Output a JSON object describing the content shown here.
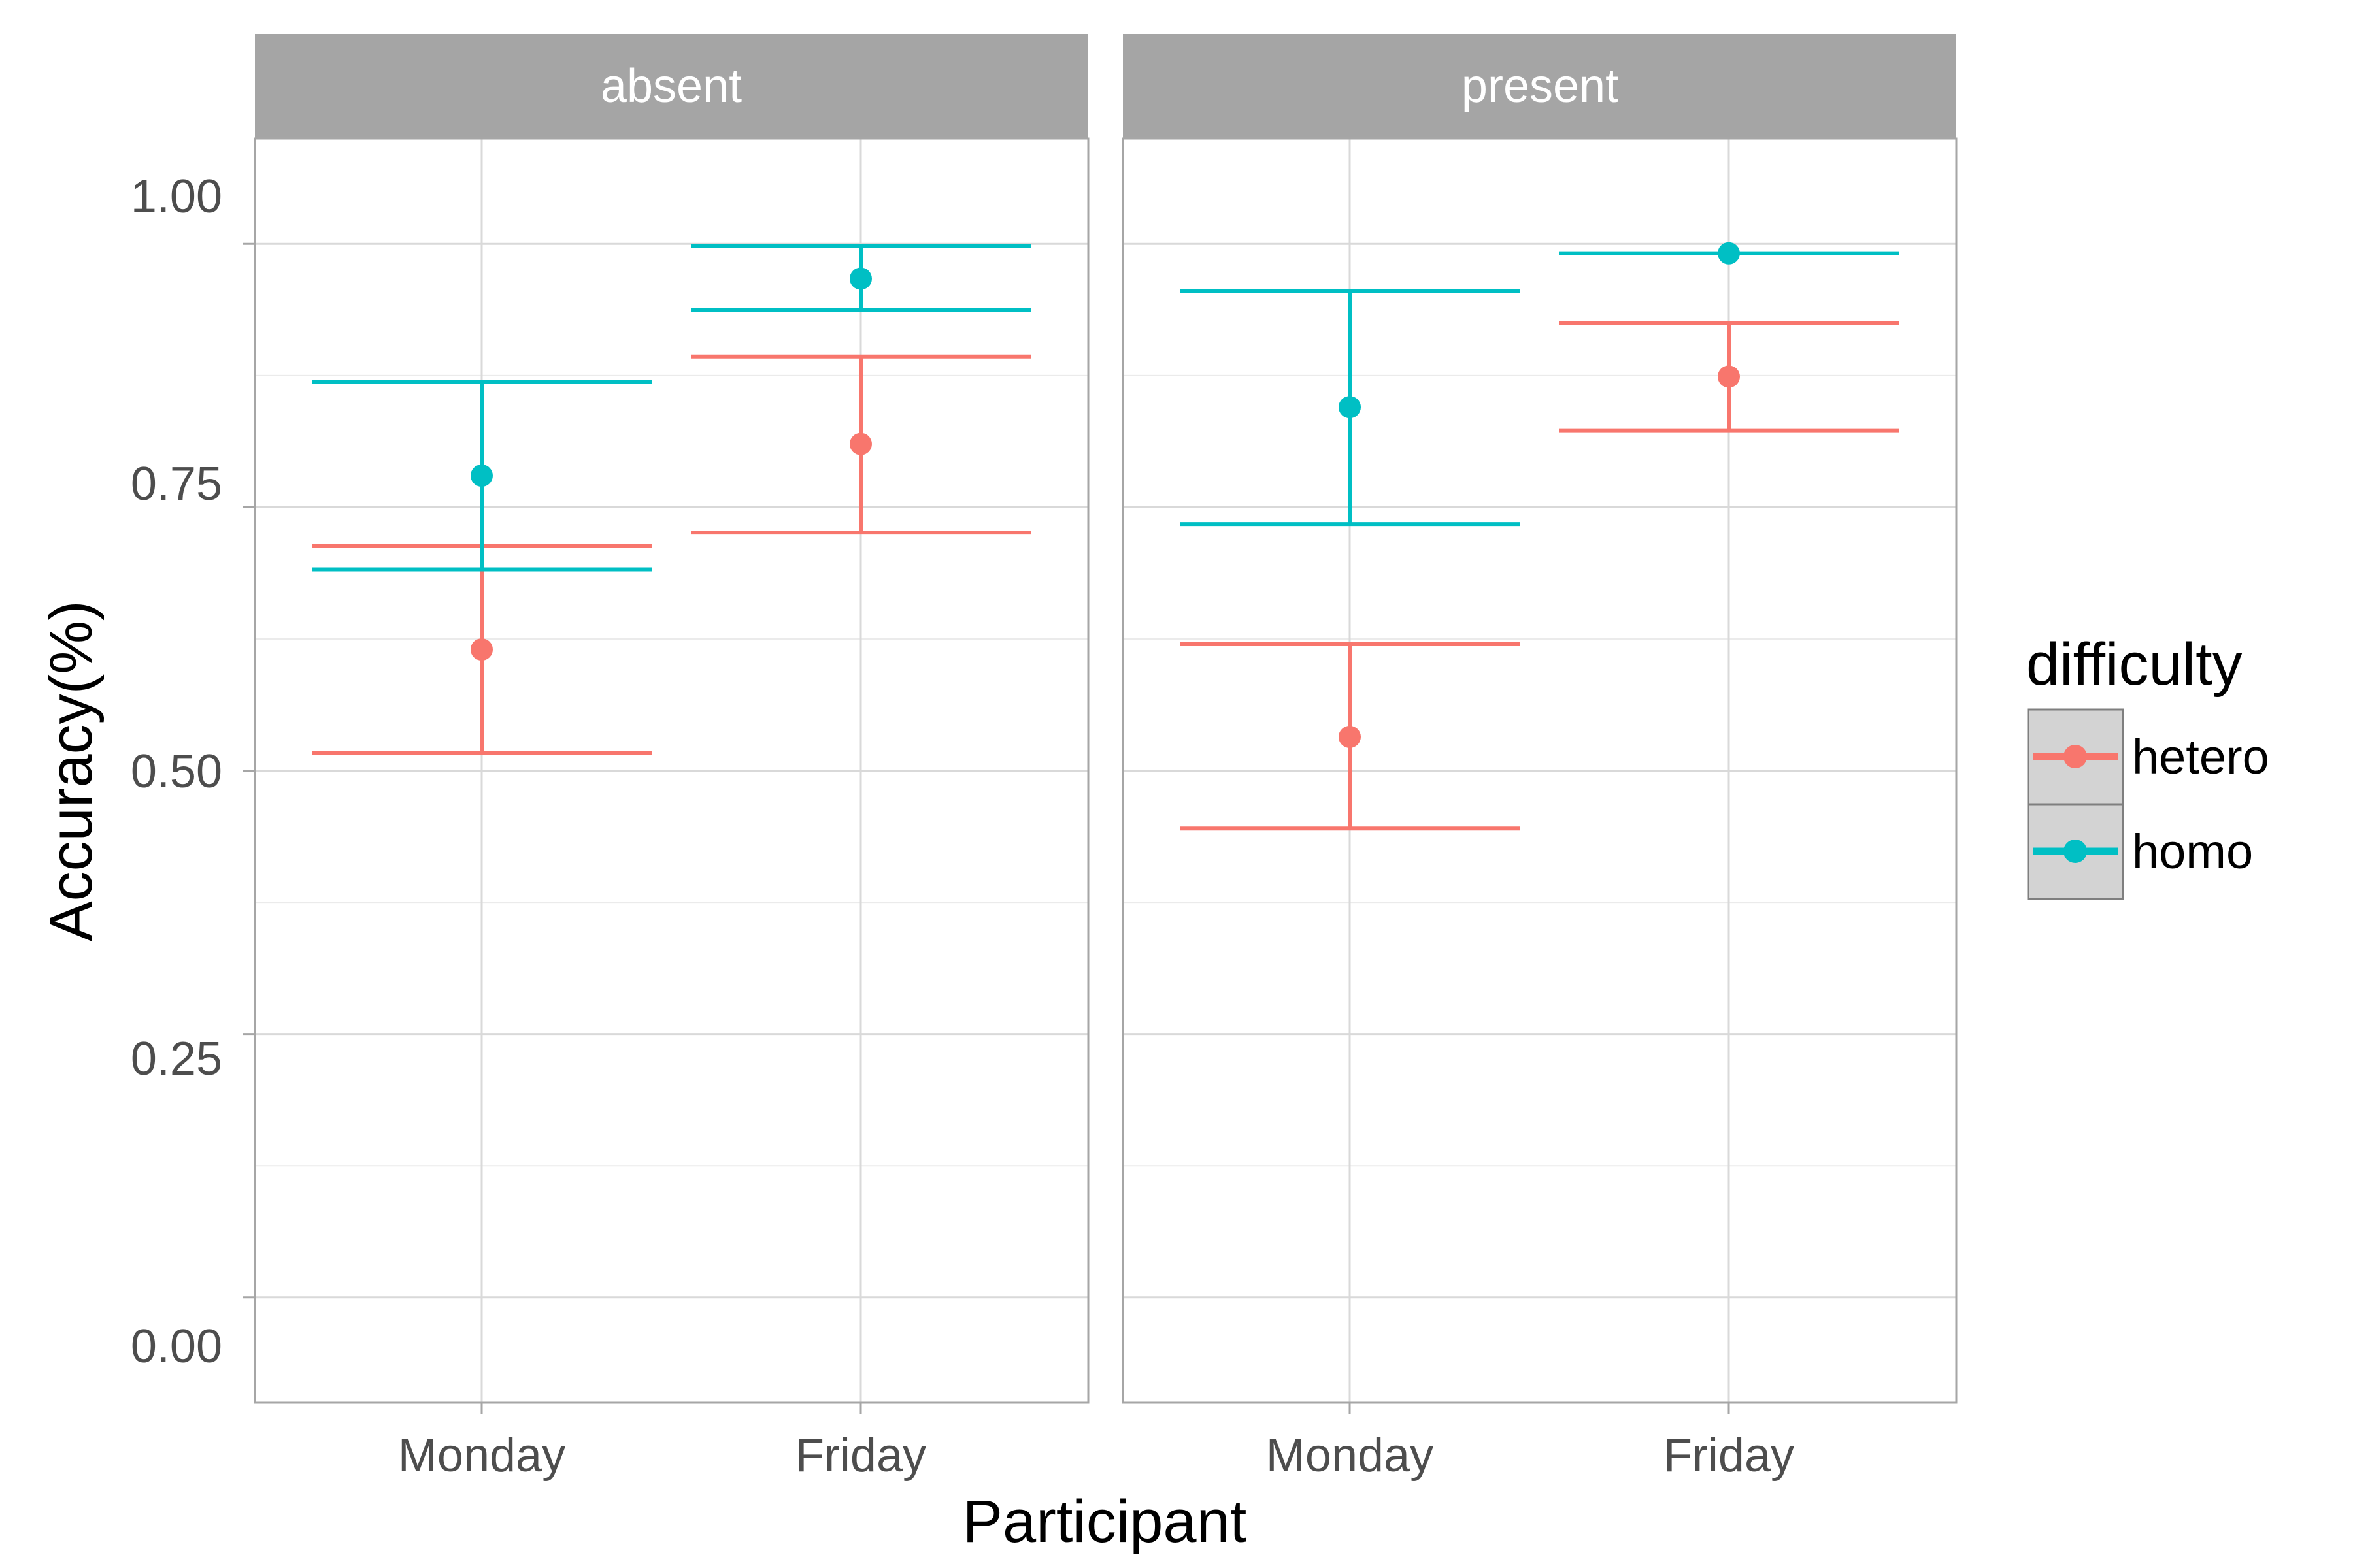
{
  "chart_data": {
    "type": "errorbar",
    "xlabel": "Participant",
    "ylabel": "Accuracy(%)",
    "ylim": [
      -0.1,
      1.1
    ],
    "y_ticks": [
      "0.00",
      "0.25",
      "0.50",
      "0.75",
      "1.00"
    ],
    "y_tick_values": [
      0,
      0.25,
      0.5,
      0.75,
      1.0
    ],
    "categories": [
      "Monday",
      "Friday"
    ],
    "facets": [
      "absent",
      "present"
    ],
    "grid": true,
    "legend": {
      "title": "difficulty",
      "placement": "right",
      "entries": [
        {
          "name": "hetero",
          "color": "#F8766D"
        },
        {
          "name": "homo",
          "color": "#00BFC4"
        }
      ]
    },
    "panels": [
      {
        "facet": "absent",
        "series": [
          {
            "name": "hetero",
            "values": [
              0.615,
              0.81
            ],
            "lower": [
              0.517,
              0.726
            ],
            "upper": [
              0.713,
              0.893
            ]
          },
          {
            "name": "homo",
            "values": [
              0.78,
              0.967
            ],
            "lower": [
              0.691,
              0.937
            ],
            "upper": [
              0.869,
              0.998
            ]
          }
        ]
      },
      {
        "facet": "present",
        "series": [
          {
            "name": "hetero",
            "values": [
              0.532,
              0.874
            ],
            "lower": [
              0.445,
              0.823
            ],
            "upper": [
              0.62,
              0.925
            ]
          },
          {
            "name": "homo",
            "values": [
              0.845,
              0.991
            ],
            "lower": [
              0.734,
              0.991
            ],
            "upper": [
              0.955,
              0.991
            ]
          }
        ]
      }
    ]
  }
}
